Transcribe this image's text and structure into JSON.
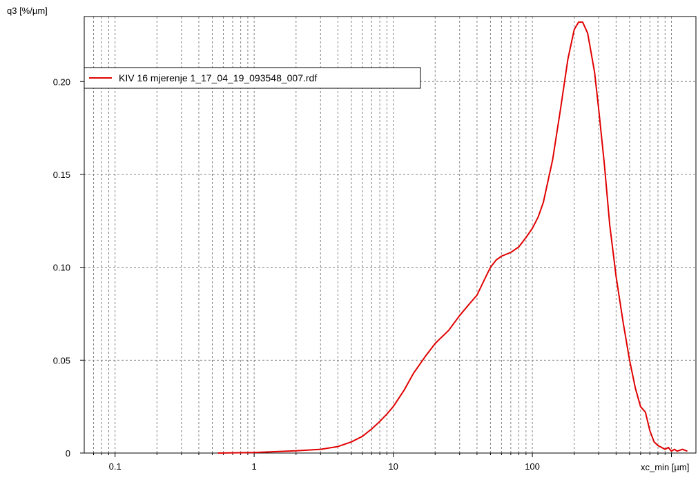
{
  "chart_data": {
    "type": "line",
    "title": "",
    "ylabel": "q3 [%/µm]",
    "xlabel": "xc_min [µm]",
    "xscale": "log",
    "xlim": [
      0.06,
      1500
    ],
    "ylim": [
      0,
      0.235
    ],
    "grid": true,
    "legend_position": "top-left",
    "x_ticks": [
      {
        "value": 0.1,
        "label": "0.1"
      },
      {
        "value": 1,
        "label": "1"
      },
      {
        "value": 10,
        "label": "10"
      },
      {
        "value": 100,
        "label": "100"
      }
    ],
    "y_ticks": [
      {
        "value": 0,
        "label": "0"
      },
      {
        "value": 0.05,
        "label": "0.05"
      },
      {
        "value": 0.1,
        "label": "0.10"
      },
      {
        "value": 0.15,
        "label": "0.15"
      },
      {
        "value": 0.2,
        "label": "0.20"
      }
    ],
    "series": [
      {
        "name": "KIV 16 mjerenje 1_17_04_19_093548_007.rdf",
        "color": "#e00000",
        "x": [
          0.55,
          1,
          1.5,
          2,
          3,
          4,
          5,
          6,
          7,
          8,
          9,
          10,
          12,
          14,
          17,
          20,
          25,
          30,
          35,
          40,
          45,
          50,
          55,
          60,
          70,
          80,
          90,
          100,
          110,
          120,
          140,
          160,
          180,
          200,
          215,
          230,
          250,
          280,
          300,
          330,
          360,
          400,
          450,
          500,
          550,
          600,
          650,
          700,
          750,
          800,
          850,
          900,
          950,
          1000,
          1050,
          1100,
          1200,
          1300
        ],
        "y": [
          0.0,
          0.0003,
          0.0008,
          0.0012,
          0.002,
          0.0035,
          0.006,
          0.009,
          0.013,
          0.017,
          0.021,
          0.025,
          0.034,
          0.043,
          0.052,
          0.059,
          0.066,
          0.074,
          0.08,
          0.085,
          0.093,
          0.1,
          0.104,
          0.106,
          0.108,
          0.111,
          0.116,
          0.121,
          0.127,
          0.135,
          0.158,
          0.186,
          0.212,
          0.228,
          0.232,
          0.232,
          0.226,
          0.205,
          0.185,
          0.155,
          0.123,
          0.095,
          0.07,
          0.05,
          0.035,
          0.025,
          0.022,
          0.012,
          0.006,
          0.004,
          0.003,
          0.002,
          0.003,
          0.001,
          0.002,
          0.001,
          0.002,
          0.001
        ]
      }
    ]
  }
}
